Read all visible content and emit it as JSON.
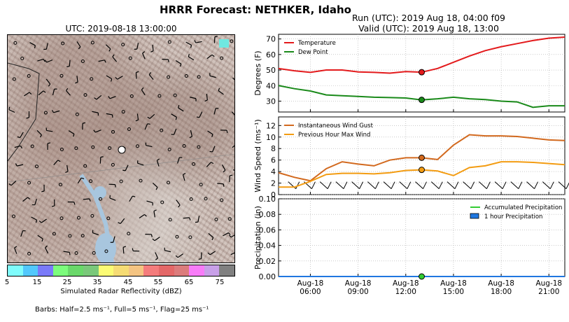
{
  "header": {
    "title": "HRRR Forecast: NETHKER, Idaho",
    "run_label": "Run (UTC): 2019 Aug 18, 04:00 f09",
    "valid_label": "Valid (UTC): 2019 Aug 18, 13:00"
  },
  "map": {
    "time_label": "UTC: 2019-08-18 13:00:00",
    "colorbar": {
      "label": "Simulated Radar Reflectivity (dBZ)",
      "ticks": [
        "5",
        "15",
        "25",
        "35",
        "45",
        "55",
        "65",
        "75"
      ],
      "colors": [
        "#7ffcfc",
        "#52c8fc",
        "#7a7af9",
        "#7cfc7c",
        "#6ad86a",
        "#7ac87a",
        "#fbfb74",
        "#f6dc74",
        "#f4c482",
        "#f47c7c",
        "#e46868",
        "#dc7c7c",
        "#f87cf8",
        "#c8a0e8",
        "#808080"
      ]
    },
    "barbs_note": "Barbs: Half=2.5 ms⁻¹, Full=5 ms⁻¹, Flag=25 ms⁻¹"
  },
  "chart_data": [
    {
      "type": "line",
      "ylabel": "Degrees (F)",
      "ylim": [
        23,
        73
      ],
      "yticks": [
        30,
        40,
        50,
        60,
        70
      ],
      "xlim": [
        4,
        22
      ],
      "legend": "top-left",
      "grid": true,
      "series": [
        {
          "name": "Temperature",
          "color": "#e31a1c",
          "x": [
            4,
            5,
            6,
            7,
            8,
            9,
            10,
            11,
            12,
            13,
            14,
            15,
            16,
            17,
            18,
            19,
            20,
            21,
            22
          ],
          "values": [
            51,
            49.5,
            48.5,
            50,
            50,
            48.8,
            48.5,
            48,
            49,
            48.6,
            51,
            55,
            59,
            62.5,
            65,
            67,
            69,
            70.5,
            71.2
          ]
        },
        {
          "name": "Dew Point",
          "color": "#1a8a1a",
          "x": [
            4,
            5,
            6,
            7,
            8,
            9,
            10,
            11,
            12,
            13,
            14,
            15,
            16,
            17,
            18,
            19,
            20,
            21,
            22
          ],
          "values": [
            40,
            38,
            36.5,
            34,
            33.5,
            33,
            32.5,
            32.3,
            32,
            30.8,
            31.5,
            32.5,
            31.5,
            31,
            30,
            29.5,
            26,
            27,
            27
          ]
        }
      ],
      "marker": {
        "x": 13,
        "values": [
          48.6,
          30.8
        ]
      }
    },
    {
      "type": "line",
      "ylabel": "Wind Speed (ms⁻¹)",
      "ylim": [
        0,
        13.5
      ],
      "yticks": [
        0,
        2,
        4,
        6,
        8,
        10,
        12
      ],
      "xlim": [
        4,
        22
      ],
      "legend": "top-left",
      "grid": true,
      "series": [
        {
          "name": "Instantaneous Wind Gust",
          "color": "#d2691e",
          "x": [
            4,
            5,
            6,
            7,
            8,
            9,
            10,
            11,
            12,
            13,
            14,
            15,
            16,
            17,
            18,
            19,
            20,
            21,
            22
          ],
          "values": [
            3.8,
            3,
            2.4,
            4.5,
            5.7,
            5.3,
            5,
            6,
            6.4,
            6.4,
            6.1,
            8.6,
            10.4,
            10.2,
            10.2,
            10.1,
            9.8,
            9.5,
            9.4
          ]
        },
        {
          "name": "Previous Hour Max Wind",
          "color": "#f39c12",
          "x": [
            4,
            5,
            6,
            7,
            8,
            9,
            10,
            11,
            12,
            13,
            14,
            15,
            16,
            17,
            18,
            19,
            20,
            21,
            22
          ],
          "values": [
            1.3,
            1.3,
            2.3,
            3.5,
            3.7,
            3.7,
            3.6,
            3.8,
            4.2,
            4.3,
            4.1,
            3.3,
            4.7,
            5,
            5.7,
            5.7,
            5.6,
            5.4,
            5.2
          ]
        }
      ],
      "marker": {
        "x": 13,
        "values": [
          6.4,
          4.3
        ]
      },
      "barbs": {
        "x": [
          5,
          6,
          7,
          8,
          9,
          10,
          11,
          12,
          13,
          14,
          15,
          16,
          17,
          18,
          19,
          20,
          21,
          22
        ],
        "y": 1.5
      }
    },
    {
      "type": "line",
      "ylabel": "Precipitation (in)",
      "ylim": [
        0,
        0.1
      ],
      "yticks": [
        "0.00",
        "0.02",
        "0.04",
        "0.06",
        "0.08",
        "0.10"
      ],
      "xlim": [
        4,
        22
      ],
      "legend": "top-right",
      "grid": true,
      "series": [
        {
          "name": "Accumulated Precipitation",
          "color": "#33cc33",
          "x": [
            4,
            22
          ],
          "values": [
            0,
            0
          ]
        },
        {
          "name": "1 hour Precipitation",
          "color": "#1f77e0",
          "x": [
            4,
            22
          ],
          "values": [
            0,
            0
          ]
        }
      ],
      "marker": {
        "x": 13,
        "values": [
          0
        ]
      },
      "xticks": [
        {
          "x": 6,
          "label": [
            "Aug-18",
            "06:00"
          ]
        },
        {
          "x": 9,
          "label": [
            "Aug-18",
            "09:00"
          ]
        },
        {
          "x": 12,
          "label": [
            "Aug-18",
            "12:00"
          ]
        },
        {
          "x": 15,
          "label": [
            "Aug-18",
            "15:00"
          ]
        },
        {
          "x": 18,
          "label": [
            "Aug-18",
            "18:00"
          ]
        },
        {
          "x": 21,
          "label": [
            "Aug-18",
            "21:00"
          ]
        }
      ]
    }
  ]
}
